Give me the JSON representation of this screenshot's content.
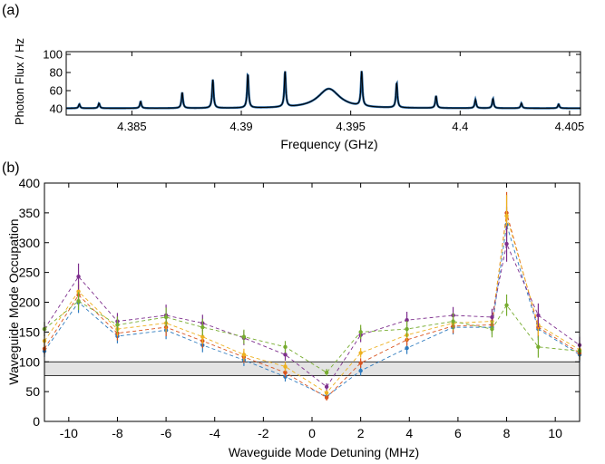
{
  "chart_data": [
    {
      "panel_label": "(a)",
      "type": "line",
      "xlabel": "Frequency (GHz)",
      "ylabel": "Photon Flux / Hz",
      "xlim": [
        4.382,
        4.4055
      ],
      "ylim": [
        33,
        103
      ],
      "xticks": [
        4.385,
        4.39,
        4.395,
        4.4,
        4.405
      ],
      "xtick_labels": [
        "4.385",
        "4.39",
        "4.395",
        "4.4",
        "4.405"
      ],
      "yticks": [
        40,
        60,
        80,
        100
      ],
      "ytick_labels": [
        "40",
        "60",
        "80",
        "100"
      ],
      "grid": false,
      "legend": "none",
      "line_colors": [
        "#000000",
        "#1f5f9a"
      ],
      "baseline": 40.5,
      "peaks": [
        {
          "x": 4.3826,
          "y": 45,
          "w": 4e-05
        },
        {
          "x": 4.3835,
          "y": 46,
          "w": 4e-05
        },
        {
          "x": 4.3854,
          "y": 48,
          "w": 4e-05
        },
        {
          "x": 4.3873,
          "y": 58,
          "w": 4e-05
        },
        {
          "x": 4.3887,
          "y": 72,
          "w": 4e-05
        },
        {
          "x": 4.3903,
          "y": 78,
          "w": 4e-05
        },
        {
          "x": 4.392,
          "y": 80,
          "w": 4e-05
        },
        {
          "x": 4.394,
          "y": 62,
          "w": 0.0006
        },
        {
          "x": 4.3955,
          "y": 79,
          "w": 4e-05
        },
        {
          "x": 4.3971,
          "y": 68,
          "w": 4e-05
        },
        {
          "x": 4.3989,
          "y": 54,
          "w": 4e-05
        },
        {
          "x": 4.4007,
          "y": 50,
          "w": 4e-05
        },
        {
          "x": 4.4015,
          "y": 51,
          "w": 4e-05
        },
        {
          "x": 4.4028,
          "y": 46,
          "w": 4e-05
        },
        {
          "x": 4.4045,
          "y": 45,
          "w": 4e-05
        }
      ]
    },
    {
      "panel_label": "(b)",
      "type": "line",
      "xlabel": "Waveguide Mode Detuning (MHz)",
      "ylabel": "Waveguide Mode Occupation",
      "xlim": [
        -11,
        11
      ],
      "ylim": [
        0,
        400
      ],
      "xticks": [
        -10,
        -8,
        -6,
        -4,
        -2,
        0,
        2,
        4,
        6,
        8,
        10
      ],
      "xtick_labels": [
        "-10",
        "-8",
        "-6",
        "-4",
        "-2",
        "0",
        "2",
        "4",
        "6",
        "8",
        "10"
      ],
      "yticks": [
        0,
        50,
        100,
        150,
        200,
        250,
        300,
        350,
        400
      ],
      "ytick_labels": [
        "0",
        "50",
        "100",
        "150",
        "200",
        "250",
        "300",
        "350",
        "400"
      ],
      "grid": false,
      "legend": "none",
      "band": {
        "y_min": 77,
        "y_max": 100,
        "color": "#e3e3e3"
      },
      "x": [
        -11,
        -9.6,
        -8,
        -6,
        -4.5,
        -2.8,
        -1.1,
        0.6,
        2.0,
        3.9,
        5.8,
        7.4,
        8.0,
        9.3,
        11
      ],
      "series": [
        {
          "color": "#2e7bbf",
          "values": [
            118,
            200,
            143,
            153,
            128,
            103,
            75,
            42,
            85,
            123,
            158,
            158,
            330,
            155,
            112
          ],
          "err": [
            10,
            18,
            12,
            15,
            12,
            10,
            8,
            5,
            8,
            10,
            12,
            12,
            30,
            18,
            12
          ]
        },
        {
          "color": "#d9531e",
          "values": [
            122,
            212,
            148,
            158,
            135,
            108,
            82,
            40,
            98,
            137,
            160,
            162,
            350,
            158,
            115
          ],
          "err": [
            10,
            18,
            12,
            15,
            12,
            10,
            8,
            5,
            8,
            10,
            12,
            12,
            35,
            18,
            12
          ]
        },
        {
          "color": "#edb120",
          "values": [
            135,
            218,
            155,
            165,
            142,
            112,
            92,
            48,
            115,
            145,
            165,
            168,
            345,
            162,
            120
          ],
          "err": [
            10,
            18,
            12,
            15,
            12,
            10,
            8,
            5,
            8,
            10,
            12,
            12,
            35,
            18,
            12
          ]
        },
        {
          "color": "#7e2f8e",
          "values": [
            155,
            243,
            168,
            178,
            165,
            140,
            112,
            58,
            145,
            170,
            178,
            175,
            298,
            178,
            128
          ],
          "err": [
            12,
            22,
            14,
            18,
            14,
            12,
            10,
            6,
            12,
            14,
            14,
            14,
            30,
            20,
            14
          ]
        },
        {
          "color": "#77ac30",
          "values": [
            155,
            202,
            162,
            175,
            158,
            142,
            125,
            82,
            150,
            155,
            168,
            155,
            195,
            125,
            118
          ],
          "err": [
            12,
            15,
            14,
            16,
            14,
            12,
            10,
            6,
            12,
            14,
            14,
            14,
            18,
            18,
            14
          ]
        }
      ]
    }
  ]
}
